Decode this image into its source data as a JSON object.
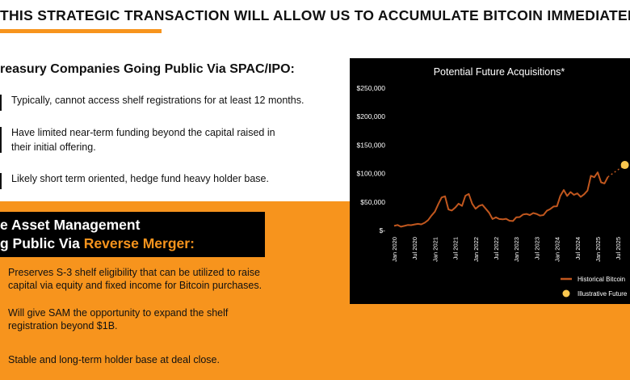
{
  "slide": {
    "title": "THIS STRATEGIC TRANSACTION WILL ALLOW US TO ACCUMULATE BITCOIN IMMEDIATELY",
    "accent_color": "#f7941d"
  },
  "section1": {
    "heading": "reasury Companies Going Public Via SPAC/IPO:",
    "bullets": [
      {
        "line1": "Typically, cannot access shelf registrations for at least 12 months.",
        "line2": ""
      },
      {
        "line1": "Have limited near-term funding beyond the capital raised in",
        "line2": "their initial offering."
      },
      {
        "line1": "Likely short term oriented, hedge fund heavy holder base.",
        "line2": ""
      }
    ]
  },
  "section2": {
    "heading_line1": "e Asset Management",
    "heading_line2_prefix": "g Public Via ",
    "heading_line2_highlight": "Reverse Merger:",
    "bullets": [
      {
        "line1": "Preserves S-3 shelf eligibility that can be utilized to raise",
        "line2": "capital via equity and fixed income for Bitcoin purchases."
      },
      {
        "line1": "Will give SAM the opportunity to expand the shelf",
        "line2": "registration beyond $1B."
      },
      {
        "line1": "Stable and long-term holder base at deal close.",
        "line2": ""
      }
    ]
  },
  "chart_data": {
    "type": "line",
    "title": "Potential Future Acquisitions*",
    "xlabel": "",
    "ylabel": "",
    "y_tick_labels": [
      "$250,000",
      "$200,000",
      "$150,000",
      "$100,000",
      "$50,000",
      "$-"
    ],
    "y_ticks": [
      250000,
      200000,
      150000,
      100000,
      50000,
      0
    ],
    "ylim": [
      0,
      250000
    ],
    "x_tick_labels": [
      "Jan 2020",
      "Jul 2020",
      "Jan 2021",
      "Jul 2021",
      "Jan 2022",
      "Jul 2022",
      "Jan 2023",
      "Jul 2023",
      "Jan 2024",
      "Jul 2024",
      "Jan 2025",
      "Jul 2025"
    ],
    "grid": false,
    "legend_position": "bottom-right",
    "series": [
      {
        "name": "Historical Bitcoin",
        "color": "#c1571e",
        "points": [
          [
            "2020-01",
            8000
          ],
          [
            "2020-02",
            9500
          ],
          [
            "2020-03",
            6500
          ],
          [
            "2020-04",
            8000
          ],
          [
            "2020-05",
            9500
          ],
          [
            "2020-06",
            9300
          ],
          [
            "2020-07",
            10500
          ],
          [
            "2020-08",
            11500
          ],
          [
            "2020-09",
            10700
          ],
          [
            "2020-10",
            13500
          ],
          [
            "2020-11",
            18000
          ],
          [
            "2020-12",
            26000
          ],
          [
            "2021-01",
            33000
          ],
          [
            "2021-02",
            46000
          ],
          [
            "2021-03",
            58000
          ],
          [
            "2021-04",
            60000
          ],
          [
            "2021-05",
            37000
          ],
          [
            "2021-06",
            35000
          ],
          [
            "2021-07",
            40000
          ],
          [
            "2021-08",
            47000
          ],
          [
            "2021-09",
            43000
          ],
          [
            "2021-10",
            61000
          ],
          [
            "2021-11",
            64000
          ],
          [
            "2021-12",
            47000
          ],
          [
            "2022-01",
            38000
          ],
          [
            "2022-02",
            43000
          ],
          [
            "2022-03",
            45000
          ],
          [
            "2022-04",
            38000
          ],
          [
            "2022-05",
            31000
          ],
          [
            "2022-06",
            20000
          ],
          [
            "2022-07",
            23000
          ],
          [
            "2022-08",
            20000
          ],
          [
            "2022-09",
            19500
          ],
          [
            "2022-10",
            20500
          ],
          [
            "2022-11",
            17000
          ],
          [
            "2022-12",
            16500
          ],
          [
            "2023-01",
            23000
          ],
          [
            "2023-02",
            23500
          ],
          [
            "2023-03",
            28000
          ],
          [
            "2023-04",
            29000
          ],
          [
            "2023-05",
            27000
          ],
          [
            "2023-06",
            30500
          ],
          [
            "2023-07",
            29000
          ],
          [
            "2023-08",
            26000
          ],
          [
            "2023-09",
            27000
          ],
          [
            "2023-10",
            34500
          ],
          [
            "2023-11",
            37500
          ],
          [
            "2023-12",
            42000
          ],
          [
            "2024-01",
            42500
          ],
          [
            "2024-02",
            61000
          ],
          [
            "2024-03",
            71000
          ],
          [
            "2024-04",
            60500
          ],
          [
            "2024-05",
            67500
          ],
          [
            "2024-06",
            62500
          ],
          [
            "2024-07",
            65000
          ],
          [
            "2024-08",
            59000
          ],
          [
            "2024-09",
            63500
          ],
          [
            "2024-10",
            70000
          ],
          [
            "2024-11",
            96000
          ],
          [
            "2024-12",
            93500
          ],
          [
            "2025-01",
            102000
          ],
          [
            "2025-02",
            84500
          ],
          [
            "2025-03",
            82500
          ],
          [
            "2025-04",
            94000
          ]
        ]
      },
      {
        "name": "Illustrative Future",
        "color": "#f9c74f",
        "points": [
          [
            "2025-04",
            94000
          ],
          [
            "2025-09",
            115000
          ]
        ]
      }
    ]
  }
}
